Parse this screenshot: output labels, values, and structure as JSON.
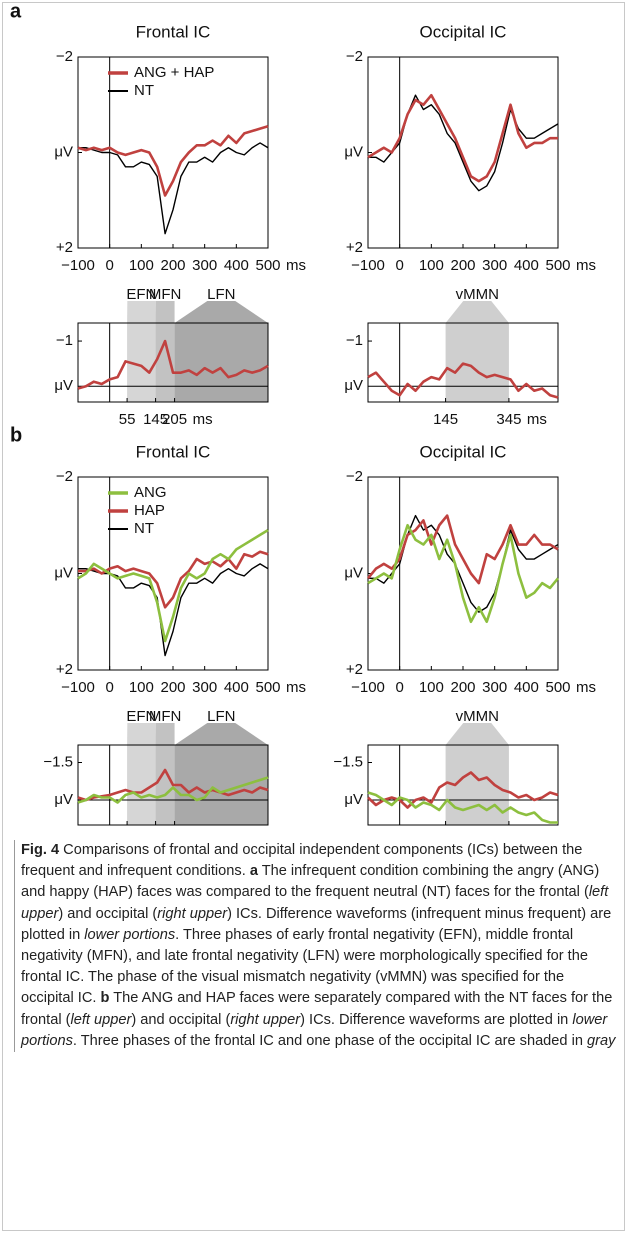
{
  "panel_labels": [
    "a",
    "b"
  ],
  "chart_data": [
    {
      "type": "line",
      "title": "Frontal IC",
      "legend": "upper left",
      "y_inverted": true,
      "x": [
        -100,
        -75,
        -50,
        -25,
        0,
        25,
        50,
        75,
        100,
        125,
        150,
        175,
        200,
        225,
        250,
        275,
        300,
        325,
        350,
        375,
        400,
        425,
        450,
        475,
        500
      ],
      "xlim": [
        -100,
        500
      ],
      "xticks": [
        {
          "value": -100,
          "label": "−100"
        },
        0,
        100,
        200,
        300,
        400,
        500
      ],
      "xlabel": "ms",
      "ylim": [
        -2,
        2
      ],
      "yticks": [
        {
          "value": -2,
          "label": "−2"
        },
        {
          "value": 0,
          "label": "μV"
        },
        {
          "value": 2,
          "label": "+2"
        }
      ],
      "series": [
        {
          "name": "ANG + HAP",
          "color": "#c0413f",
          "values": [
            -0.1,
            -0.05,
            -0.1,
            -0.05,
            -0.1,
            0,
            0.05,
            0,
            -0.05,
            0,
            0.3,
            0.9,
            0.6,
            0.2,
            0,
            -0.15,
            -0.15,
            -0.25,
            -0.15,
            -0.35,
            -0.2,
            -0.4,
            -0.45,
            -0.5,
            -0.55
          ]
        },
        {
          "name": "NT",
          "color": "#000000",
          "values": [
            -0.1,
            -0.1,
            -0.05,
            0,
            0,
            0.05,
            0.3,
            0.3,
            0.2,
            0.25,
            0.5,
            1.7,
            1.2,
            0.5,
            0.2,
            0.2,
            0.1,
            0.2,
            0,
            -0.1,
            0,
            0.05,
            -0.1,
            -0.2,
            -0.1
          ]
        }
      ]
    },
    {
      "type": "line",
      "title": "Occipital IC",
      "y_inverted": true,
      "x": [
        -100,
        -75,
        -50,
        -25,
        0,
        25,
        50,
        75,
        100,
        125,
        150,
        175,
        200,
        225,
        250,
        275,
        300,
        325,
        350,
        375,
        400,
        425,
        450,
        475,
        500
      ],
      "xlim": [
        -100,
        500
      ],
      "xticks": [
        {
          "value": -100,
          "label": "−100"
        },
        0,
        100,
        200,
        300,
        400,
        500
      ],
      "xlabel": "ms",
      "ylim": [
        -2,
        2
      ],
      "yticks": [
        {
          "value": -2,
          "label": "−2"
        },
        {
          "value": 0,
          "label": "μV"
        },
        {
          "value": 2,
          "label": "+2"
        }
      ],
      "series": [
        {
          "color": "#c0413f",
          "values": [
            0.1,
            0,
            -0.1,
            0,
            -0.3,
            -0.8,
            -1.1,
            -1.0,
            -1.2,
            -0.9,
            -0.6,
            -0.3,
            0.1,
            0.5,
            0.6,
            0.5,
            0.2,
            -0.4,
            -1.0,
            -0.4,
            -0.1,
            -0.2,
            -0.2,
            -0.3,
            -0.3
          ]
        },
        {
          "color": "#000000",
          "values": [
            0.1,
            0.1,
            0.2,
            0,
            -0.2,
            -0.8,
            -1.2,
            -0.9,
            -1.0,
            -0.8,
            -0.4,
            -0.2,
            0.2,
            0.6,
            0.8,
            0.7,
            0.4,
            -0.2,
            -0.9,
            -0.5,
            -0.3,
            -0.3,
            -0.4,
            -0.5,
            -0.6
          ]
        }
      ]
    },
    {
      "type": "line",
      "y_inverted": true,
      "zero_line": true,
      "x": [
        -100,
        -75,
        -50,
        -25,
        0,
        25,
        50,
        75,
        100,
        125,
        150,
        175,
        200,
        225,
        250,
        275,
        300,
        325,
        350,
        375,
        400,
        425,
        450,
        475,
        500
      ],
      "xlim": [
        -100,
        500
      ],
      "xticks": [
        55,
        145,
        205
      ],
      "xlabel": "ms",
      "ylim": [
        -1.4,
        0.35
      ],
      "yticks": [
        {
          "value": -1,
          "label": "−1"
        },
        {
          "value": 0,
          "label": "μV"
        }
      ],
      "regions": [
        {
          "label": "EFN",
          "start": 55,
          "end": 145,
          "color": "#d6d6d6"
        },
        {
          "label": "MFN",
          "start": 145,
          "end": 205,
          "color": "#c2c2c2"
        },
        {
          "label": "LFN",
          "start": 205,
          "end": 500,
          "color": "#a9a9a9"
        }
      ],
      "series": [
        {
          "color": "#c0413f",
          "values": [
            0.05,
            0,
            -0.1,
            -0.05,
            -0.15,
            -0.2,
            -0.55,
            -0.5,
            -0.45,
            -0.3,
            -0.6,
            -1.0,
            -0.3,
            -0.3,
            -0.35,
            -0.25,
            -0.4,
            -0.3,
            -0.4,
            -0.2,
            -0.25,
            -0.35,
            -0.3,
            -0.35,
            -0.45
          ]
        }
      ]
    },
    {
      "type": "line",
      "y_inverted": true,
      "zero_line": true,
      "x": [
        -100,
        -75,
        -50,
        -25,
        0,
        25,
        50,
        75,
        100,
        125,
        150,
        175,
        200,
        225,
        250,
        275,
        300,
        325,
        350,
        375,
        400,
        425,
        450,
        475,
        500
      ],
      "xlim": [
        -100,
        500
      ],
      "xticks": [
        145,
        345
      ],
      "xlabel": "ms",
      "ylim": [
        -1.4,
        0.35
      ],
      "yticks": [
        {
          "value": -1,
          "label": "−1"
        },
        {
          "value": 0,
          "label": "μV"
        }
      ],
      "regions": [
        {
          "label": "vMMN",
          "start": 145,
          "end": 345,
          "color": "#cfcfcf"
        }
      ],
      "series": [
        {
          "color": "#c0413f",
          "values": [
            -0.2,
            -0.3,
            -0.1,
            0.1,
            0.2,
            -0.05,
            0.1,
            -0.1,
            -0.2,
            -0.15,
            -0.4,
            -0.3,
            -0.5,
            -0.45,
            -0.3,
            -0.2,
            -0.25,
            -0.2,
            -0.15,
            0.1,
            -0.05,
            0.1,
            0.05,
            0.2,
            0.25
          ]
        }
      ]
    },
    {
      "type": "line",
      "title": "Frontal IC",
      "legend": "upper left",
      "y_inverted": true,
      "x": [
        -100,
        -75,
        -50,
        -25,
        0,
        25,
        50,
        75,
        100,
        125,
        150,
        175,
        200,
        225,
        250,
        275,
        300,
        325,
        350,
        375,
        400,
        425,
        450,
        475,
        500
      ],
      "xlim": [
        -100,
        500
      ],
      "xticks": [
        {
          "value": -100,
          "label": "−100"
        },
        0,
        100,
        200,
        300,
        400,
        500
      ],
      "xlabel": "ms",
      "ylim": [
        -2,
        2
      ],
      "yticks": [
        {
          "value": -2,
          "label": "−2"
        },
        {
          "value": 0,
          "label": "μV"
        },
        {
          "value": 2,
          "label": "+2"
        }
      ],
      "series": [
        {
          "name": "ANG",
          "color": "#8dbf3f",
          "values": [
            0.1,
            0,
            -0.2,
            -0.1,
            0,
            0.1,
            0.05,
            0,
            0.05,
            0.1,
            0.6,
            1.4,
            0.9,
            0.3,
            0,
            0.1,
            0,
            -0.3,
            -0.4,
            -0.3,
            -0.5,
            -0.6,
            -0.7,
            -0.8,
            -0.9
          ]
        },
        {
          "name": "HAP",
          "color": "#c0413f",
          "values": [
            -0.05,
            -0.05,
            -0.1,
            0,
            -0.1,
            -0.15,
            -0.05,
            -0.1,
            -0.05,
            0,
            0.2,
            0.7,
            0.5,
            0.1,
            -0.05,
            -0.3,
            -0.2,
            -0.25,
            -0.15,
            -0.3,
            -0.1,
            -0.4,
            -0.35,
            -0.45,
            -0.4
          ]
        },
        {
          "name": "NT",
          "color": "#000000",
          "values": [
            -0.1,
            -0.1,
            -0.05,
            0,
            0,
            0.05,
            0.3,
            0.3,
            0.2,
            0.25,
            0.5,
            1.7,
            1.2,
            0.5,
            0.2,
            0.2,
            0.1,
            0.2,
            0,
            -0.1,
            0,
            0.05,
            -0.1,
            -0.2,
            -0.1
          ]
        }
      ]
    },
    {
      "type": "line",
      "title": "Occipital IC",
      "y_inverted": true,
      "x": [
        -100,
        -75,
        -50,
        -25,
        0,
        25,
        50,
        75,
        100,
        125,
        150,
        175,
        200,
        225,
        250,
        275,
        300,
        325,
        350,
        375,
        400,
        425,
        450,
        475,
        500
      ],
      "xlim": [
        -100,
        500
      ],
      "xticks": [
        {
          "value": -100,
          "label": "−100"
        },
        0,
        100,
        200,
        300,
        400,
        500
      ],
      "xlabel": "ms",
      "ylim": [
        -2,
        2
      ],
      "yticks": [
        {
          "value": -2,
          "label": "−2"
        },
        {
          "value": 0,
          "label": "μV"
        },
        {
          "value": 2,
          "label": "+2"
        }
      ],
      "series": [
        {
          "color": "#8dbf3f",
          "values": [
            0.2,
            0.1,
            0,
            0.1,
            -0.5,
            -1.0,
            -0.7,
            -0.6,
            -0.8,
            -0.3,
            -0.7,
            -0.2,
            0.5,
            1.0,
            0.7,
            1.0,
            0.5,
            -0.2,
            -0.8,
            0,
            0.5,
            0.4,
            0.2,
            0.3,
            0.1
          ]
        },
        {
          "color": "#c0413f",
          "values": [
            0.1,
            -0.1,
            -0.2,
            -0.1,
            -0.3,
            -0.8,
            -0.9,
            -1.1,
            -0.6,
            -1.0,
            -1.2,
            -0.6,
            -0.3,
            0,
            0.2,
            -0.4,
            -0.3,
            -0.6,
            -1.0,
            -0.6,
            -0.6,
            -0.8,
            -0.6,
            -0.6,
            -0.5
          ]
        },
        {
          "color": "#000000",
          "values": [
            0.1,
            0.1,
            0.2,
            0,
            -0.2,
            -0.8,
            -1.2,
            -0.9,
            -1.0,
            -0.8,
            -0.4,
            -0.2,
            0.2,
            0.6,
            0.8,
            0.7,
            0.4,
            -0.2,
            -0.9,
            -0.5,
            -0.3,
            -0.3,
            -0.4,
            -0.5,
            -0.6
          ]
        }
      ]
    },
    {
      "type": "line",
      "y_inverted": true,
      "zero_line": true,
      "x": [
        -100,
        -75,
        -50,
        -25,
        0,
        25,
        50,
        75,
        100,
        125,
        150,
        175,
        200,
        225,
        250,
        275,
        300,
        325,
        350,
        375,
        400,
        425,
        450,
        475,
        500
      ],
      "xlim": [
        -100,
        500
      ],
      "xticks": [
        55,
        145,
        205
      ],
      "xlabel": "ms",
      "ylim": [
        -2.2,
        1.0
      ],
      "yticks": [
        {
          "value": -1.5,
          "label": "−1.5"
        },
        {
          "value": 0,
          "label": "μV"
        }
      ],
      "regions": [
        {
          "label": "EFN",
          "start": 55,
          "end": 145,
          "color": "#d6d6d6"
        },
        {
          "label": "MFN",
          "start": 145,
          "end": 205,
          "color": "#c2c2c2"
        },
        {
          "label": "LFN",
          "start": 205,
          "end": 500,
          "color": "#a9a9a9"
        }
      ],
      "series": [
        {
          "color": "#8dbf3f",
          "values": [
            0.1,
            0,
            -0.2,
            -0.1,
            -0.1,
            0.1,
            -0.2,
            -0.3,
            -0.1,
            -0.2,
            -0.1,
            -0.2,
            -0.5,
            -0.2,
            -0.2,
            0,
            -0.1,
            -0.5,
            -0.3,
            -0.4,
            -0.5,
            -0.6,
            -0.7,
            -0.8,
            -0.9
          ]
        },
        {
          "color": "#c0413f",
          "values": [
            -0.1,
            0,
            -0.1,
            -0.15,
            -0.2,
            -0.3,
            -0.4,
            -0.3,
            -0.3,
            -0.5,
            -0.7,
            -1.2,
            -0.6,
            -0.6,
            -0.3,
            -0.5,
            -0.3,
            -0.4,
            -0.3,
            -0.2,
            -0.3,
            -0.4,
            -0.3,
            -0.5,
            -0.4
          ]
        }
      ]
    },
    {
      "type": "line",
      "y_inverted": true,
      "zero_line": true,
      "x": [
        -100,
        -75,
        -50,
        -25,
        0,
        25,
        50,
        75,
        100,
        125,
        150,
        175,
        200,
        225,
        250,
        275,
        300,
        325,
        350,
        375,
        400,
        425,
        450,
        475,
        500
      ],
      "xlim": [
        -100,
        500
      ],
      "xticks": [
        145,
        345
      ],
      "xlabel": "ms",
      "ylim": [
        -2.2,
        1.0
      ],
      "yticks": [
        {
          "value": -1.5,
          "label": "−1.5"
        },
        {
          "value": 0,
          "label": "μV"
        }
      ],
      "regions": [
        {
          "label": "vMMN",
          "start": 145,
          "end": 345,
          "color": "#cfcfcf"
        }
      ],
      "series": [
        {
          "color": "#8dbf3f",
          "values": [
            -0.3,
            -0.2,
            0,
            0.2,
            -0.1,
            0,
            0.3,
            0.1,
            0.2,
            0.4,
            0,
            0.3,
            0.4,
            0.3,
            0.2,
            0.4,
            0.2,
            0.5,
            0.3,
            0.5,
            0.6,
            0.5,
            0.8,
            0.9,
            0.9
          ]
        },
        {
          "color": "#c0413f",
          "values": [
            -0.1,
            0.2,
            0,
            -0.1,
            0,
            0.3,
            0,
            -0.1,
            0.1,
            -0.5,
            -0.7,
            -0.6,
            -0.9,
            -1.1,
            -0.8,
            -0.9,
            -0.6,
            -0.4,
            -0.3,
            -0.1,
            -0.2,
            0,
            -0.1,
            -0.3,
            -0.2
          ]
        }
      ]
    }
  ],
  "caption": [
    "Fig. 4",
    " Comparisons of frontal and occipital independent components (ICs) between the frequent and infrequent conditions. ",
    "a",
    " The infrequent condition combining the angry (ANG) and happy (HAP) faces was compared to the frequent neutral (NT) faces for the frontal (",
    "left upper",
    ") and occipital (",
    "right upper",
    ") ICs. Difference waveforms (infrequent minus frequent) are plotted in ",
    "lower portions",
    ". Three phases of early frontal negativity (EFN), middle frontal negativity (MFN), and late frontal negativity (LFN) were morphologically specified for the frontal IC. The phase of the visual mismatch negativity (vMMN) was specified for the occipital IC. ",
    "b",
    " The ANG and HAP faces were separately compared with the NT faces for the frontal (",
    "left upper",
    ") and occipital (",
    "right upper",
    ") ICs. Difference waveforms are plotted in ",
    "lower portions",
    ". Three phases of the frontal IC and one phase of the occipital IC are shaded in ",
    "gray"
  ]
}
